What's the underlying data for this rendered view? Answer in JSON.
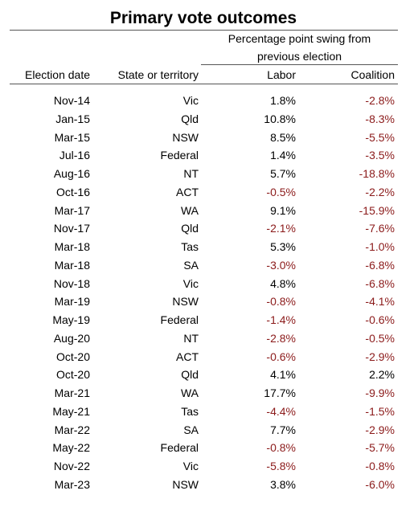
{
  "header": {
    "title": "Primary vote outcomes"
  },
  "table": {
    "column_group": "Percentage point swing from previous election",
    "columns": [
      "Election date",
      "State or territory",
      "Labor",
      "Coalition"
    ],
    "rows": [
      [
        "Nov-14",
        "Vic",
        "1.8%",
        "-2.8%"
      ],
      [
        "Jan-15",
        "Qld",
        "10.8%",
        "-8.3%"
      ],
      [
        "Mar-15",
        "NSW",
        "8.5%",
        "-5.5%"
      ],
      [
        "Jul-16",
        "Federal",
        "1.4%",
        "-3.5%"
      ],
      [
        "Aug-16",
        "NT",
        "5.7%",
        "-18.8%"
      ],
      [
        "Oct-16",
        "ACT",
        "-0.5%",
        "-2.2%"
      ],
      [
        "Mar-17",
        "WA",
        "9.1%",
        "-15.9%"
      ],
      [
        "Nov-17",
        "Qld",
        "-2.1%",
        "-7.6%"
      ],
      [
        "Mar-18",
        "Tas",
        "5.3%",
        "-1.0%"
      ],
      [
        "Mar-18",
        "SA",
        "-3.0%",
        "-6.8%"
      ],
      [
        "Nov-18",
        "Vic",
        "4.8%",
        "-6.8%"
      ],
      [
        "Mar-19",
        "NSW",
        "-0.8%",
        "-4.1%"
      ],
      [
        "May-19",
        "Federal",
        "-1.4%",
        "-0.6%"
      ],
      [
        "Aug-20",
        "NT",
        "-2.8%",
        "-0.5%"
      ],
      [
        "Oct-20",
        "ACT",
        "-0.6%",
        "-2.9%"
      ],
      [
        "Oct-20",
        "Qld",
        "4.1%",
        "2.2%"
      ],
      [
        "Mar-21",
        "WA",
        "17.7%",
        "-9.9%"
      ],
      [
        "May-21",
        "Tas",
        "-4.4%",
        "-1.5%"
      ],
      [
        "Mar-22",
        "SA",
        "7.7%",
        "-2.9%"
      ],
      [
        "May-22",
        "Federal",
        "-0.8%",
        "-5.7%"
      ],
      [
        "Nov-22",
        "Vic",
        "-5.8%",
        "-0.8%"
      ],
      [
        "Mar-23",
        "NSW",
        "3.8%",
        "-6.0%"
      ]
    ]
  }
}
